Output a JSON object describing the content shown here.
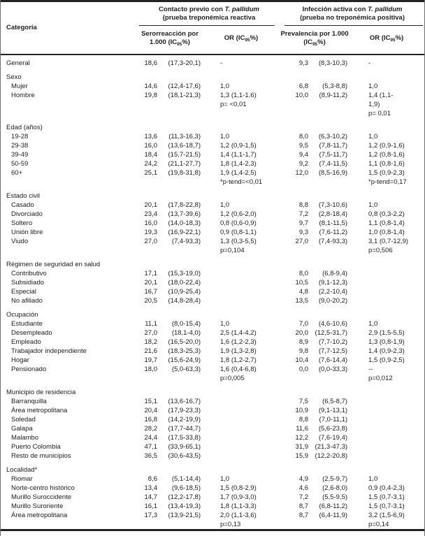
{
  "table": {
    "headers": {
      "category": "Categoría",
      "group1": {
        "pre": "Contacto previo con ",
        "italic": "T. pallidum",
        "line2": "(prueba treponémica reactiva"
      },
      "group2": {
        "pre": "Infección activa con ",
        "italic": "T. pallidum",
        "line2": "(prueba no treponémica positiva)"
      },
      "sero": {
        "line1": "Serorreacción por",
        "line2_pre": "1.000 (IC",
        "sub": "95",
        "line2_post": "%)"
      },
      "or1": {
        "pre": "OR (IC",
        "sub": "95",
        "post": "%)"
      },
      "prev": {
        "line1": "Prevalencia por 1.000",
        "line2_pre": "(IC",
        "sub": "95",
        "line2_post": "%)"
      },
      "or2": {
        "pre": "OR (IC",
        "sub": "95",
        "post": "%)"
      }
    },
    "rows": [
      {
        "type": "data",
        "indent": false,
        "label": "General",
        "sero": "18,6",
        "sero_ci": "(17,3-20,1)",
        "or1": [
          "-"
        ],
        "prev": "9,3",
        "prev_ci": "(8,3-10,3)",
        "or2": [
          "-"
        ]
      },
      {
        "type": "section",
        "label": "Sexo"
      },
      {
        "type": "data",
        "indent": true,
        "label": "Mujer",
        "sero": "14,6",
        "sero_ci": "(12,4-17,6)",
        "or1": [
          "1,0"
        ],
        "prev": "6,8",
        "prev_ci": "(5,3-8,8)",
        "or2": [
          "1,0"
        ]
      },
      {
        "type": "data",
        "indent": true,
        "label": "Hombre",
        "sero": "19,8",
        "sero_ci": "(18,1-21,3)",
        "or1": [
          "1,3 (1,1-1,6)",
          "p= <0,01"
        ],
        "prev": "10,0",
        "prev_ci": "(8,9-11,2)",
        "or2": [
          "1,4 (1,1-",
          "1,9)",
          "p= 0,01"
        ]
      },
      {
        "type": "section",
        "label": "Edad (años)"
      },
      {
        "type": "data",
        "indent": true,
        "label": "19-28",
        "sero": "13,6",
        "sero_ci": "(11,3-16,3)",
        "or1": [
          "1,0"
        ],
        "prev": "8,0",
        "prev_ci": "(6,3-10,2)",
        "or2": [
          "1,0"
        ]
      },
      {
        "type": "data",
        "indent": true,
        "label": "29-38",
        "sero": "16,0",
        "sero_ci": "(13,6-18,7)",
        "or1": [
          "1,2 (0,9-1,5)"
        ],
        "prev": "9,5",
        "prev_ci": "(7,8-11,7)",
        "or2": [
          "1,2 (0,9-1,6)"
        ]
      },
      {
        "type": "data",
        "indent": true,
        "label": "39-49",
        "sero": "18,4",
        "sero_ci": "(15,7-21,5)",
        "or1": [
          "1,4 (1,1-1,7)"
        ],
        "prev": "9,4",
        "prev_ci": "(7,5-11,7)",
        "or2": [
          "1,2 (0,8-1,6)"
        ]
      },
      {
        "type": "data",
        "indent": true,
        "label": "50-59",
        "sero": "24,2",
        "sero_ci": "(21,1-27,7)",
        "or1": [
          "1,8 (1,4-2,3)"
        ],
        "prev": "9,2",
        "prev_ci": "(7,4-11,5)",
        "or2": [
          "1,1 (0,8-1,6)"
        ]
      },
      {
        "type": "data",
        "indent": true,
        "label": "60+",
        "sero": "25,1",
        "sero_ci": "(19,8-31,8)",
        "or1": [
          "1,9 (1,4-2,5)",
          "*p-tend=<0,01"
        ],
        "prev": "12,0",
        "prev_ci": "(8,5-16,9)",
        "or2": [
          "1,5 (0,9-2,3)",
          "*p-tend=0,17"
        ]
      },
      {
        "type": "section",
        "label": "Estado civil"
      },
      {
        "type": "data",
        "indent": true,
        "label": "Casado",
        "sero": "20,1",
        "sero_ci": "(17,8-22,8)",
        "or1": [
          "1,0"
        ],
        "prev": "8,8",
        "prev_ci": "(7,3-10,6)",
        "or2": [
          "1,0"
        ]
      },
      {
        "type": "data",
        "indent": true,
        "label": "Divorciado",
        "sero": "23,4",
        "sero_ci": "(13,7-39,6)",
        "or1": [
          "1,2 (0,6-2,0)"
        ],
        "prev": "7,2",
        "prev_ci": "(2,8-18,4)",
        "or2": [
          "0,8 (0,3-2,2)"
        ]
      },
      {
        "type": "data",
        "indent": true,
        "label": "Soltero",
        "sero": "16,0",
        "sero_ci": "(14,0-18,3)",
        "or1": [
          "0,8 (0,6-0,9)"
        ],
        "prev": "9,7",
        "prev_ci": "(8,1-11,5)",
        "or2": [
          "1,1 (0,8-1,4)"
        ]
      },
      {
        "type": "data",
        "indent": true,
        "label": "Unión libre",
        "sero": "19,3",
        "sero_ci": "(16,9-22,1)",
        "or1": [
          "0,9 (0,8-1,1)"
        ],
        "prev": "9,3",
        "prev_ci": "(7,6-11,2)",
        "or2": [
          "1,0 (0,8-1,4)"
        ]
      },
      {
        "type": "data",
        "indent": true,
        "label": "Viudo",
        "sero": "27,0",
        "sero_ci": "(7,4-93,3)",
        "or1": [
          "1,3 (0,3-5,5)",
          "p=0,104"
        ],
        "prev": "27,0",
        "prev_ci": "(7,4-93,3)",
        "or2": [
          "3,1 (0,7-12,9)",
          "p=0,506"
        ]
      },
      {
        "type": "section",
        "label": "Régimen de seguridad en salud"
      },
      {
        "type": "data",
        "indent": true,
        "label": "Contributivo",
        "sero": "17,1",
        "sero_ci": "(15,3-19,0)",
        "or1": [],
        "prev": "8,0",
        "prev_ci": "(6,8-9,4)",
        "or2": []
      },
      {
        "type": "data",
        "indent": true,
        "label": "Subsidiado",
        "sero": "20,1",
        "sero_ci": "(18,0-22,4)",
        "or1": [],
        "prev": "10,5",
        "prev_ci": "(9,1-12,3)",
        "or2": []
      },
      {
        "type": "data",
        "indent": true,
        "label": "Especial",
        "sero": "16,7",
        "sero_ci": "(10,9-25,4)",
        "or1": [],
        "prev": "4,8",
        "prev_ci": "(2,2-10,4)",
        "or2": []
      },
      {
        "type": "data",
        "indent": true,
        "label": "No afiliado",
        "sero": "20,5",
        "sero_ci": "(14,8-28,4)",
        "or1": [],
        "prev": "13,5",
        "prev_ci": "(9,0-20,2)",
        "or2": []
      },
      {
        "type": "section",
        "label": "Ocupación"
      },
      {
        "type": "data",
        "indent": true,
        "label": "Estudiante",
        "sero": "11,1",
        "sero_ci": "(8,0-15,4)",
        "or1": [
          "1,0"
        ],
        "prev": "7,0",
        "prev_ci": "(4,6-10,6)",
        "or2": [
          "1,0"
        ]
      },
      {
        "type": "data",
        "indent": true,
        "label": "Desempleado",
        "sero": "27,0",
        "sero_ci": "(18,1-4,0)",
        "or1": [
          "2,5 (1,4-4,2)"
        ],
        "prev": "20,0",
        "prev_ci": "(12,5-31,7)",
        "or2": [
          "2,9 (1,5-5,5)"
        ]
      },
      {
        "type": "data",
        "indent": true,
        "label": "Empleado",
        "sero": "18,2",
        "sero_ci": "(16,5-20,0)",
        "or1": [
          "1,6 (1,2-2,3)"
        ],
        "prev": "8,9",
        "prev_ci": "(7,7-10,2)",
        "or2": [
          "1,3 (0,8-1,9)"
        ]
      },
      {
        "type": "data",
        "indent": true,
        "label": "Trabajador independiente",
        "sero": "21,6",
        "sero_ci": "(18,3-25,3)",
        "or1": [
          "1,9 (1,3-2,8)"
        ],
        "prev": "9,8",
        "prev_ci": "(7,7-12,5)",
        "or2": [
          "1,4 (0,9-2,3)"
        ]
      },
      {
        "type": "data",
        "indent": true,
        "label": "Hogar",
        "sero": "19,7",
        "sero_ci": "(15,6-24,9)",
        "or1": [
          "1,8 (1,2-2,7)"
        ],
        "prev": "10,4",
        "prev_ci": "(7,6-14,4)",
        "or2": [
          "1,5 (0,9-2,5)"
        ]
      },
      {
        "type": "data",
        "indent": true,
        "label": "Pensionado",
        "sero": "18,0",
        "sero_ci": "(5,0-63,3)",
        "or1": [
          "1,6 (0,4-6,8)",
          "p=0,005"
        ],
        "prev": "0,0",
        "prev_ci": "(0,0-33,3)",
        "or2": [
          "--",
          "p=0,012"
        ]
      },
      {
        "type": "section",
        "label": "Municipio de residencia"
      },
      {
        "type": "data",
        "indent": true,
        "label": "Barranquilla",
        "sero": "15,1",
        "sero_ci": "(13,6-16,7)",
        "or1": [],
        "prev": "7,5",
        "prev_ci": "(6,5-8,7)",
        "or2": []
      },
      {
        "type": "data",
        "indent": true,
        "label": "Área metropolitana",
        "sero": "20,4",
        "sero_ci": "(17,9-23,3)",
        "or1": [],
        "prev": "10,9",
        "prev_ci": "(9,1-13,1)",
        "or2": []
      },
      {
        "type": "data",
        "indent": true,
        "label": "Soledad",
        "sero": "16,8",
        "sero_ci": "(14,2-19,9)",
        "or1": [],
        "prev": "8,8",
        "prev_ci": "(7,0-11,1)",
        "or2": []
      },
      {
        "type": "data",
        "indent": true,
        "label": "Galapa",
        "sero": "28,2",
        "sero_ci": "(17,7-44,7)",
        "or1": [],
        "prev": "11,6",
        "prev_ci": "(5,6-23,8)",
        "or2": []
      },
      {
        "type": "data",
        "indent": true,
        "label": "Malambo",
        "sero": "24,4",
        "sero_ci": "(17,5-33,8)",
        "or1": [],
        "prev": "12,2",
        "prev_ci": "(7,6-19,4)",
        "or2": []
      },
      {
        "type": "data",
        "indent": true,
        "label": "Puerto Colombia",
        "sero": "47,1",
        "sero_ci": "(33,9-65,1)",
        "or1": [],
        "prev": "31,9",
        "prev_ci": "(21,3-47,3)",
        "or2": []
      },
      {
        "type": "data",
        "indent": true,
        "label": "Resto de municipios",
        "sero": "36,5",
        "sero_ci": "(30,6-43,5)",
        "or1": [],
        "prev": "15,9",
        "prev_ci": "(12,2-20,8)",
        "or2": []
      },
      {
        "type": "section",
        "label": "Localidad*"
      },
      {
        "type": "data",
        "indent": true,
        "label": "Riomar",
        "sero": "8,6",
        "sero_ci": "(5,1-14,4)",
        "or1": [
          "1,0"
        ],
        "prev": "4,9",
        "prev_ci": "(2,5-9,7)",
        "or2": [
          "1,0"
        ]
      },
      {
        "type": "data",
        "indent": true,
        "label": "Norte-centro histórico",
        "sero": "13,4",
        "sero_ci": "(9,6-18,5)",
        "or1": [
          "1,5 (0,8-2,9)"
        ],
        "prev": "4,6",
        "prev_ci": "(2,6-8,0)",
        "or2": [
          "0,9 (0,4-2,3)"
        ]
      },
      {
        "type": "data",
        "indent": true,
        "label": "Murillo Suroccidente",
        "sero": "14,7",
        "sero_ci": "(12,2-17,8)",
        "or1": [
          "1,7 (0,9-3,0)"
        ],
        "prev": "7,2",
        "prev_ci": "(5,5-9,5)",
        "or2": [
          "1,5 (0,7-3,1)"
        ]
      },
      {
        "type": "data",
        "indent": true,
        "label": "Murillo Suroriente",
        "sero": "16,1",
        "sero_ci": "(13,4-19,3)",
        "or1": [
          "1,8 (1,1-3,3)"
        ],
        "prev": "8,7",
        "prev_ci": "(6,8-11,2)",
        "or2": [
          "1,5 (0,7-3,1)"
        ]
      },
      {
        "type": "data",
        "indent": true,
        "label": "Área metropolitana",
        "sero": "17,3",
        "sero_ci": "(13,9-21,5)",
        "or1": [
          "2,0 (1,1-3,6)",
          "p=0,13"
        ],
        "prev": "8,7",
        "prev_ci": "(6,4-11,9)",
        "or2": [
          "3,2 (1,5-6,9)",
          "p=0,14"
        ]
      }
    ]
  }
}
